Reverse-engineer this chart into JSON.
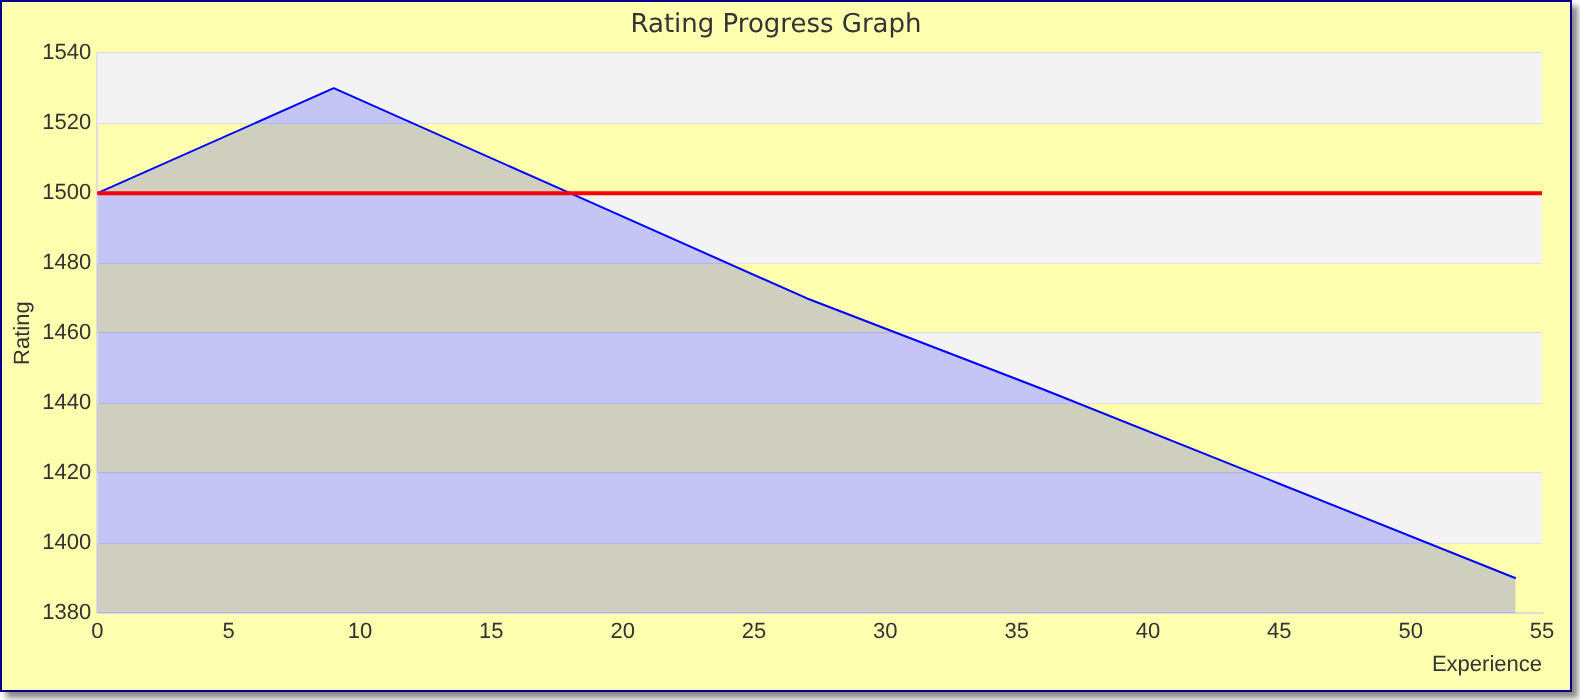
{
  "chart_data": {
    "type": "area",
    "title": "Rating Progress Graph",
    "xlabel": "Experience",
    "ylabel": "Rating",
    "x": [
      0,
      9,
      18,
      27,
      36,
      45,
      54
    ],
    "series": [
      {
        "color": "#0000ff",
        "values": [
          1500,
          1530,
          1500,
          1470,
          1444,
          1417,
          1390
        ]
      }
    ],
    "xlim": [
      0,
      55
    ],
    "xticks": [
      0,
      5,
      10,
      15,
      20,
      25,
      30,
      35,
      40,
      45,
      50,
      55
    ],
    "ylim": [
      1380,
      1540
    ],
    "yticks": [
      1380,
      1400,
      1420,
      1440,
      1460,
      1480,
      1500,
      1520,
      1540
    ],
    "grid": "y",
    "legend": false,
    "ref_lines": [
      {
        "axis": "y",
        "value": 1500,
        "color": "#ff0000"
      }
    ]
  }
}
